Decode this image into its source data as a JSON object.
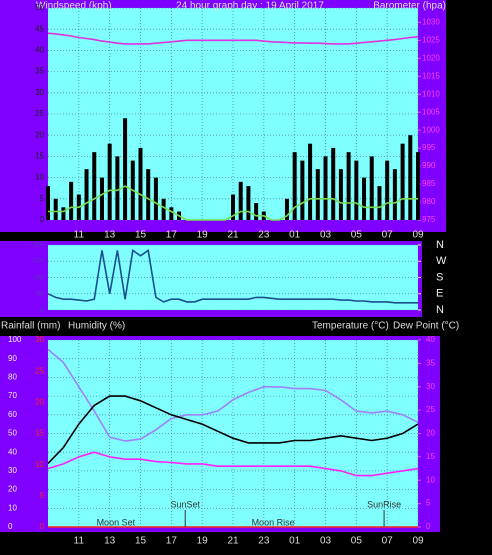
{
  "chart_data": [
    {
      "type": "combo",
      "title": "24 hour graph day : 19 April 2017",
      "y_label": "Windspeed (kph)",
      "y2_label": "Barometer (hpa)",
      "x": [
        0,
        0.5,
        1,
        1.5,
        2,
        2.5,
        3,
        3.5,
        4,
        4.5,
        5,
        5.5,
        6,
        6.5,
        7,
        7.5,
        8,
        8.5,
        9,
        9.5,
        10,
        10.5,
        11,
        11.5,
        12,
        12.5,
        13,
        13.5,
        14,
        14.5,
        15,
        15.5,
        16,
        16.5,
        17,
        17.5,
        18,
        18.5,
        19,
        19.5,
        20,
        20.5,
        21,
        21.5,
        22,
        22.5,
        23,
        23.5,
        24
      ],
      "xlim": [
        0,
        24
      ],
      "xticks": [
        {
          "value": 2,
          "label": "11"
        },
        {
          "value": 4,
          "label": "13"
        },
        {
          "value": 6,
          "label": "15"
        },
        {
          "value": 8,
          "label": "17"
        },
        {
          "value": 10,
          "label": "19"
        },
        {
          "value": 12,
          "label": "21"
        },
        {
          "value": 14,
          "label": "23"
        },
        {
          "value": 16,
          "label": "01"
        },
        {
          "value": 18,
          "label": "03"
        },
        {
          "value": 20,
          "label": "05"
        },
        {
          "value": 22,
          "label": "07"
        },
        {
          "value": 24,
          "label": "09"
        }
      ],
      "ylim": [
        0,
        50
      ],
      "yticks": [
        0,
        5,
        10,
        15,
        20,
        25,
        30,
        35,
        40,
        45,
        50
      ],
      "y2lim": [
        975,
        1034
      ],
      "y2ticks": [
        975,
        980,
        985,
        990,
        995,
        1000,
        1005,
        1010,
        1015,
        1020,
        1025,
        1030
      ],
      "grid": true,
      "series": [
        {
          "mark": "bar",
          "color": "#000000",
          "values": [
            8,
            5,
            3,
            9,
            6,
            12,
            16,
            10,
            18,
            15,
            24,
            14,
            17,
            12,
            10,
            5,
            3,
            2,
            0,
            0,
            0,
            0,
            0,
            0,
            6,
            9,
            8,
            4,
            2,
            0,
            0,
            5,
            16,
            14,
            18,
            12,
            15,
            17,
            12,
            16,
            14,
            10,
            15,
            8,
            14,
            12,
            18,
            20,
            16
          ]
        },
        {
          "mark": "line",
          "color": "#77dd55",
          "values": [
            2,
            2,
            2,
            3,
            3,
            4,
            5,
            6,
            7,
            7,
            8,
            7,
            6,
            5,
            4,
            3,
            2,
            1,
            0,
            0,
            0,
            0,
            0,
            0,
            1,
            2,
            2,
            1,
            1,
            0,
            0,
            1,
            3,
            4,
            5,
            5,
            5,
            5,
            4,
            4,
            4,
            3,
            3,
            3,
            4,
            4,
            5,
            5,
            5
          ]
        },
        {
          "mark": "line",
          "color": "#e030e0",
          "axis": "y2",
          "values": [
            1027,
            1026.8,
            1026.5,
            1026.2,
            1025.8,
            1025.5,
            1025.2,
            1024.8,
            1024.5,
            1024.2,
            1024,
            1024,
            1024,
            1024,
            1024.2,
            1024.4,
            1024.6,
            1024.8,
            1025,
            1025,
            1025,
            1025,
            1025,
            1025,
            1025,
            1025,
            1025,
            1025,
            1024.8,
            1024.6,
            1024.5,
            1024.4,
            1024.3,
            1024.3,
            1024.2,
            1024.2,
            1024.1,
            1024,
            1024,
            1024,
            1024.2,
            1024.4,
            1024.6,
            1024.8,
            1025,
            1025.2,
            1025.5,
            1025.8,
            1026
          ]
        }
      ]
    },
    {
      "type": "line",
      "x": [
        0,
        0.5,
        1,
        1.5,
        2,
        2.5,
        3,
        3.5,
        4,
        4.5,
        5,
        5.5,
        6,
        6.5,
        7,
        7.5,
        8,
        8.5,
        9,
        9.5,
        10,
        10.5,
        11,
        11.5,
        12,
        12.5,
        13,
        13.5,
        14,
        14.5,
        15,
        15.5,
        16,
        16.5,
        17,
        17.5,
        18,
        18.5,
        19,
        19.5,
        20,
        20.5,
        21,
        21.5,
        22,
        22.5,
        23,
        23.5,
        24
      ],
      "xlim": [
        0,
        24
      ],
      "ylim": [
        0,
        360
      ],
      "yticks": [
        0,
        90,
        180,
        270,
        360
      ],
      "y2ticks": [
        {
          "value": 0,
          "label": "N"
        },
        {
          "value": 90,
          "label": "E"
        },
        {
          "value": 180,
          "label": "S"
        },
        {
          "value": 270,
          "label": "W"
        },
        {
          "value": 360,
          "label": "N"
        }
      ],
      "grid": true,
      "series": [
        {
          "color": "#1a4f8f",
          "values": [
            90,
            70,
            60,
            60,
            55,
            50,
            60,
            330,
            90,
            330,
            60,
            330,
            300,
            330,
            70,
            45,
            60,
            60,
            45,
            45,
            60,
            60,
            60,
            60,
            60,
            60,
            60,
            70,
            70,
            65,
            60,
            60,
            60,
            60,
            60,
            60,
            60,
            60,
            55,
            55,
            50,
            50,
            45,
            45,
            45,
            40,
            40,
            40,
            40
          ]
        }
      ]
    },
    {
      "type": "line",
      "y_label": "Humidity (%)",
      "y3_label": "Rainfall (mm)",
      "y2_label": "Temperature (°C)",
      "y2b_label": "Dew Point (°C)",
      "x": [
        0,
        1,
        2,
        3,
        4,
        5,
        6,
        7,
        8,
        9,
        10,
        11,
        12,
        13,
        14,
        15,
        16,
        17,
        18,
        19,
        20,
        21,
        22,
        23,
        24
      ],
      "xlim": [
        0,
        24
      ],
      "xticks": [
        {
          "value": 2,
          "label": "11"
        },
        {
          "value": 4,
          "label": "13"
        },
        {
          "value": 6,
          "label": "15"
        },
        {
          "value": 8,
          "label": "17"
        },
        {
          "value": 10,
          "label": "19"
        },
        {
          "value": 12,
          "label": "21"
        },
        {
          "value": 14,
          "label": "23"
        },
        {
          "value": 16,
          "label": "01"
        },
        {
          "value": 18,
          "label": "03"
        },
        {
          "value": 20,
          "label": "05"
        },
        {
          "value": 22,
          "label": "07"
        },
        {
          "value": 24,
          "label": "09"
        }
      ],
      "ylim": [
        0,
        100
      ],
      "yticks": [
        0,
        10,
        20,
        30,
        40,
        50,
        60,
        70,
        80,
        90,
        100
      ],
      "y2lim": [
        0,
        40
      ],
      "y2ticks": [
        0,
        5,
        10,
        15,
        20,
        25,
        30,
        35,
        40
      ],
      "y3lim": [
        0,
        30
      ],
      "y3ticks": [
        0,
        5,
        10,
        15,
        20,
        25,
        30
      ],
      "grid": true,
      "series": [
        {
          "color": "#a080ff",
          "values": [
            95,
            88,
            75,
            62,
            48,
            46,
            47,
            52,
            58,
            60,
            60,
            62,
            68,
            72,
            75,
            75,
            74,
            74,
            73,
            68,
            62,
            61,
            62,
            60,
            56
          ]
        },
        {
          "color": "#000000",
          "axis": "y2",
          "values": [
            13.6,
            17,
            22,
            26,
            28,
            28,
            27,
            25.5,
            24,
            23,
            22,
            20.5,
            19,
            18,
            18,
            18,
            18.5,
            18.5,
            19,
            19.5,
            19,
            18.5,
            19,
            20,
            22
          ]
        },
        {
          "color": "#ff20ff",
          "axis": "y2",
          "values": [
            12.5,
            13.5,
            15,
            16,
            15,
            14.5,
            14.5,
            14,
            13.8,
            13.5,
            13.5,
            13,
            13,
            13,
            13,
            13,
            13,
            13,
            12.5,
            12,
            11,
            11,
            11.5,
            12,
            12.5
          ]
        },
        {
          "color": "#ff2020",
          "axis": "y3",
          "values": [
            0,
            0,
            0,
            0,
            0,
            0,
            0,
            0,
            0,
            0,
            0,
            0,
            0,
            0,
            0,
            0,
            0,
            0,
            0,
            0,
            0,
            0,
            0,
            0,
            0
          ]
        }
      ],
      "annotations": [
        {
          "text": "Moon Set",
          "x": 4.4
        },
        {
          "text": "SunSet",
          "x": 8.9
        },
        {
          "text": "Moon Rise",
          "x": 14.6
        },
        {
          "text": "SunRise",
          "x": 21.8
        }
      ]
    }
  ]
}
